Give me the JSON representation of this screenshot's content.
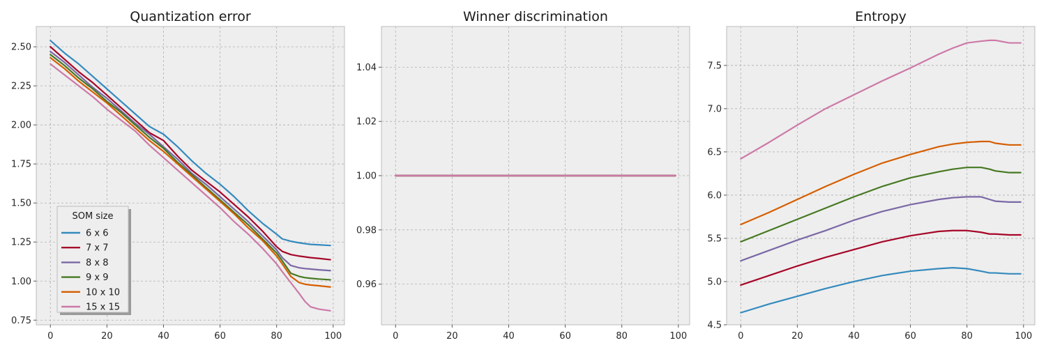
{
  "chart_data": [
    {
      "type": "line",
      "title": "Quantization error",
      "xlabel": "",
      "ylabel": "",
      "xlim": [
        -5,
        104
      ],
      "ylim": [
        0.72,
        2.63
      ],
      "xticks": [
        0,
        20,
        40,
        60,
        80,
        100
      ],
      "yticks": [
        0.75,
        1.0,
        1.25,
        1.5,
        1.75,
        2.0,
        2.25,
        2.5
      ],
      "ytick_labels": [
        "0.75",
        "1.00",
        "1.25",
        "1.50",
        "1.75",
        "2.00",
        "2.25",
        "2.50"
      ],
      "grid": true,
      "legend": {
        "title": "SOM size",
        "placement": "lower-left"
      },
      "x": [
        0,
        5,
        10,
        15,
        20,
        25,
        30,
        35,
        40,
        45,
        50,
        55,
        60,
        65,
        70,
        75,
        80,
        82,
        85,
        88,
        90,
        92,
        95,
        99
      ],
      "series": [
        {
          "name": "6 x 6",
          "color": "#348ABD",
          "values": [
            2.54,
            2.46,
            2.39,
            2.31,
            2.23,
            2.15,
            2.07,
            1.99,
            1.94,
            1.86,
            1.77,
            1.69,
            1.62,
            1.54,
            1.45,
            1.37,
            1.3,
            1.27,
            1.255,
            1.245,
            1.24,
            1.235,
            1.232,
            1.228
          ]
        },
        {
          "name": "7 x 7",
          "color": "#A60628",
          "values": [
            2.5,
            2.42,
            2.34,
            2.27,
            2.19,
            2.11,
            2.03,
            1.95,
            1.9,
            1.8,
            1.71,
            1.64,
            1.57,
            1.49,
            1.41,
            1.32,
            1.22,
            1.19,
            1.17,
            1.16,
            1.155,
            1.15,
            1.145,
            1.137
          ]
        },
        {
          "name": "8 x 8",
          "color": "#7A68A6",
          "values": [
            2.47,
            2.4,
            2.32,
            2.24,
            2.17,
            2.09,
            2.01,
            1.94,
            1.86,
            1.78,
            1.69,
            1.62,
            1.54,
            1.46,
            1.38,
            1.29,
            1.2,
            1.15,
            1.1,
            1.085,
            1.08,
            1.077,
            1.072,
            1.067
          ]
        },
        {
          "name": "9 x 9",
          "color": "#467821",
          "values": [
            2.45,
            2.38,
            2.3,
            2.23,
            2.15,
            2.08,
            2.0,
            1.92,
            1.85,
            1.76,
            1.68,
            1.6,
            1.52,
            1.44,
            1.36,
            1.27,
            1.18,
            1.13,
            1.05,
            1.03,
            1.022,
            1.018,
            1.013,
            1.008
          ]
        },
        {
          "name": "10 x 10",
          "color": "#D55E00",
          "values": [
            2.43,
            2.36,
            2.28,
            2.21,
            2.14,
            2.06,
            1.98,
            1.9,
            1.83,
            1.75,
            1.67,
            1.59,
            1.51,
            1.43,
            1.34,
            1.26,
            1.16,
            1.11,
            1.03,
            0.99,
            0.98,
            0.975,
            0.97,
            0.962
          ]
        },
        {
          "name": "15 x 15",
          "color": "#CC79A7",
          "values": [
            2.39,
            2.32,
            2.25,
            2.18,
            2.1,
            2.03,
            1.96,
            1.87,
            1.79,
            1.71,
            1.63,
            1.55,
            1.47,
            1.38,
            1.3,
            1.21,
            1.11,
            1.06,
            0.99,
            0.92,
            0.87,
            0.835,
            0.82,
            0.81
          ]
        }
      ]
    },
    {
      "type": "line",
      "title": "Winner discrimination",
      "xlabel": "",
      "ylabel": "",
      "xlim": [
        -5,
        104
      ],
      "ylim": [
        0.945,
        1.055
      ],
      "xticks": [
        0,
        20,
        40,
        60,
        80,
        100
      ],
      "yticks": [
        0.96,
        0.98,
        1.0,
        1.02,
        1.04
      ],
      "ytick_labels": [
        "0.96",
        "0.98",
        "1.00",
        "1.02",
        "1.04"
      ],
      "grid": true,
      "x": [
        0,
        99
      ],
      "series": [
        {
          "name": "6 x 6",
          "color": "#348ABD",
          "values": [
            1.0,
            1.0
          ]
        },
        {
          "name": "7 x 7",
          "color": "#A60628",
          "values": [
            1.0,
            1.0
          ]
        },
        {
          "name": "8 x 8",
          "color": "#7A68A6",
          "values": [
            1.0,
            1.0
          ]
        },
        {
          "name": "9 x 9",
          "color": "#467821",
          "values": [
            1.0,
            1.0
          ]
        },
        {
          "name": "10 x 10",
          "color": "#D55E00",
          "values": [
            1.0,
            1.0
          ]
        },
        {
          "name": "15 x 15",
          "color": "#CC79A7",
          "values": [
            1.0,
            1.0
          ]
        }
      ]
    },
    {
      "type": "line",
      "title": "Entropy",
      "xlabel": "",
      "ylabel": "",
      "xlim": [
        -5,
        104
      ],
      "ylim": [
        4.5,
        7.95
      ],
      "xticks": [
        0,
        20,
        40,
        60,
        80,
        100
      ],
      "yticks": [
        4.5,
        5.0,
        5.5,
        6.0,
        6.5,
        7.0,
        7.5
      ],
      "ytick_labels": [
        "4.5",
        "5.0",
        "5.5",
        "6.0",
        "6.5",
        "7.0",
        "7.5"
      ],
      "grid": true,
      "x": [
        0,
        10,
        20,
        30,
        40,
        50,
        60,
        70,
        75,
        80,
        85,
        88,
        90,
        95,
        99
      ],
      "series": [
        {
          "name": "6 x 6",
          "color": "#348ABD",
          "values": [
            4.64,
            4.74,
            4.83,
            4.92,
            5.0,
            5.07,
            5.12,
            5.15,
            5.16,
            5.15,
            5.12,
            5.1,
            5.1,
            5.09,
            5.09
          ]
        },
        {
          "name": "7 x 7",
          "color": "#A60628",
          "values": [
            4.96,
            5.07,
            5.18,
            5.28,
            5.37,
            5.46,
            5.53,
            5.58,
            5.59,
            5.59,
            5.57,
            5.55,
            5.55,
            5.54,
            5.54
          ]
        },
        {
          "name": "8 x 8",
          "color": "#7A68A6",
          "values": [
            5.24,
            5.36,
            5.48,
            5.59,
            5.71,
            5.81,
            5.89,
            5.95,
            5.97,
            5.98,
            5.98,
            5.95,
            5.93,
            5.92,
            5.92
          ]
        },
        {
          "name": "9 x 9",
          "color": "#467821",
          "values": [
            5.46,
            5.59,
            5.72,
            5.85,
            5.98,
            6.1,
            6.2,
            6.27,
            6.3,
            6.32,
            6.32,
            6.3,
            6.28,
            6.26,
            6.26
          ]
        },
        {
          "name": "10 x 10",
          "color": "#D55E00",
          "values": [
            5.66,
            5.8,
            5.95,
            6.1,
            6.24,
            6.37,
            6.47,
            6.56,
            6.59,
            6.61,
            6.62,
            6.62,
            6.6,
            6.58,
            6.58
          ]
        },
        {
          "name": "15 x 15",
          "color": "#CC79A7",
          "values": [
            6.42,
            6.61,
            6.81,
            7.0,
            7.16,
            7.32,
            7.47,
            7.63,
            7.7,
            7.76,
            7.78,
            7.79,
            7.79,
            7.76,
            7.76
          ]
        }
      ]
    }
  ]
}
